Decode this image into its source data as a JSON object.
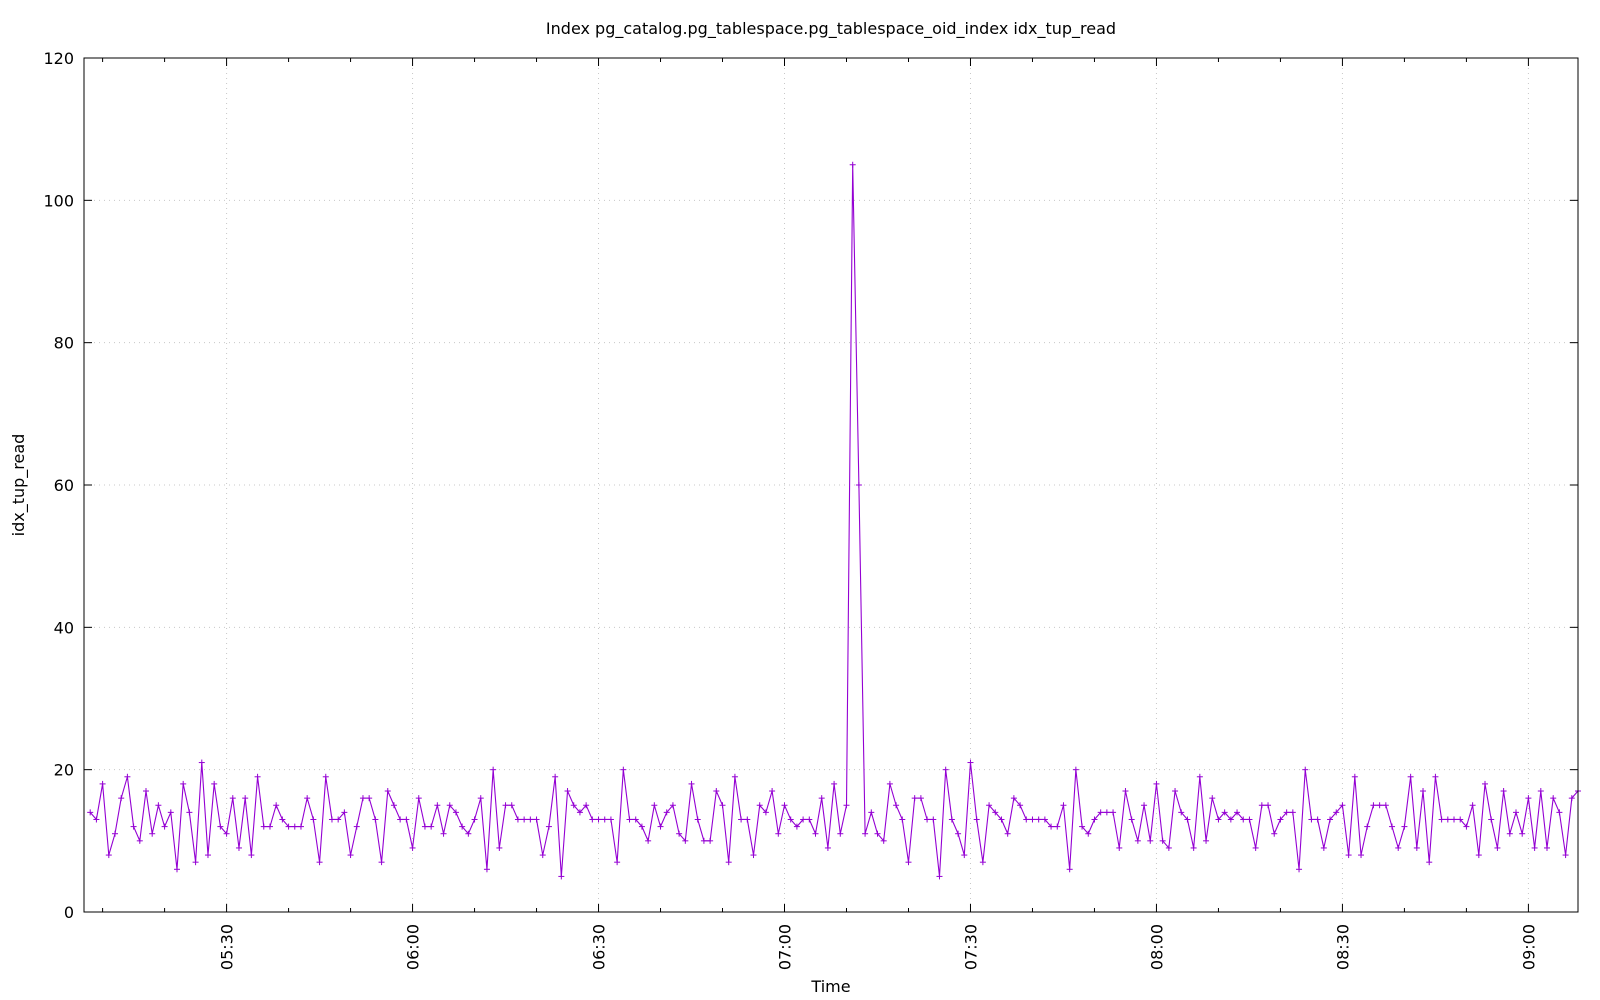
{
  "chart_data": {
    "type": "line",
    "title": "Index pg_catalog.pg_tablespace.pg_tablespace_oid_index idx_tup_read",
    "xlabel": "Time",
    "ylabel": "idx_tup_read",
    "xlim": [
      "05:07",
      "09:08"
    ],
    "ylim": [
      0,
      120
    ],
    "x_ticks": [
      "05:30",
      "06:00",
      "06:30",
      "07:00",
      "07:30",
      "08:00",
      "08:30",
      "09:00"
    ],
    "y_ticks": [
      "0",
      "20",
      "40",
      "60",
      "80",
      "100",
      "120"
    ],
    "grid": true,
    "series": [
      {
        "color": "#9400d3",
        "marker": "plus",
        "start": "05:08",
        "interval_minutes": 1,
        "values": [
          14,
          13,
          18,
          8,
          11,
          16,
          19,
          12,
          10,
          17,
          11,
          15,
          12,
          14,
          6,
          18,
          14,
          7,
          21,
          8,
          18,
          12,
          11,
          16,
          9,
          16,
          8,
          19,
          12,
          12,
          15,
          13,
          12,
          12,
          12,
          16,
          13,
          7,
          19,
          13,
          13,
          14,
          8,
          12,
          16,
          16,
          13,
          7,
          17,
          15,
          13,
          13,
          9,
          16,
          12,
          12,
          15,
          11,
          15,
          14,
          12,
          11,
          13,
          16,
          6,
          20,
          9,
          15,
          15,
          13,
          13,
          13,
          13,
          8,
          12,
          19,
          5,
          17,
          15,
          14,
          15,
          13,
          13,
          13,
          13,
          7,
          20,
          13,
          13,
          12,
          10,
          15,
          12,
          14,
          15,
          11,
          10,
          18,
          13,
          10,
          10,
          17,
          15,
          7,
          19,
          13,
          13,
          8,
          15,
          14,
          17,
          11,
          15,
          13,
          12,
          13,
          13,
          11,
          16,
          9,
          18,
          11,
          15,
          105,
          60,
          11,
          14,
          11,
          10,
          18,
          15,
          13,
          7,
          16,
          16,
          13,
          13,
          5,
          20,
          13,
          11,
          8,
          21,
          13,
          7,
          15,
          14,
          13,
          11,
          16,
          15,
          13,
          13,
          13,
          13,
          12,
          12,
          15,
          6,
          20,
          12,
          11,
          13,
          14,
          14,
          14,
          9,
          17,
          13,
          10,
          15,
          10,
          18,
          10,
          9,
          17,
          14,
          13,
          9,
          19,
          10,
          16,
          13,
          14,
          13,
          14,
          13,
          13,
          9,
          15,
          15,
          11,
          13,
          14,
          14,
          6,
          20,
          13,
          13,
          9,
          13,
          14,
          15,
          8,
          19,
          8,
          12,
          15,
          15,
          15,
          12,
          9,
          12,
          19,
          9,
          17,
          7,
          19,
          13,
          13,
          13,
          13,
          12,
          15,
          8,
          18,
          13,
          9,
          17,
          11,
          14,
          11,
          16,
          9,
          17,
          9,
          16,
          14,
          8,
          16,
          17
        ]
      }
    ]
  }
}
